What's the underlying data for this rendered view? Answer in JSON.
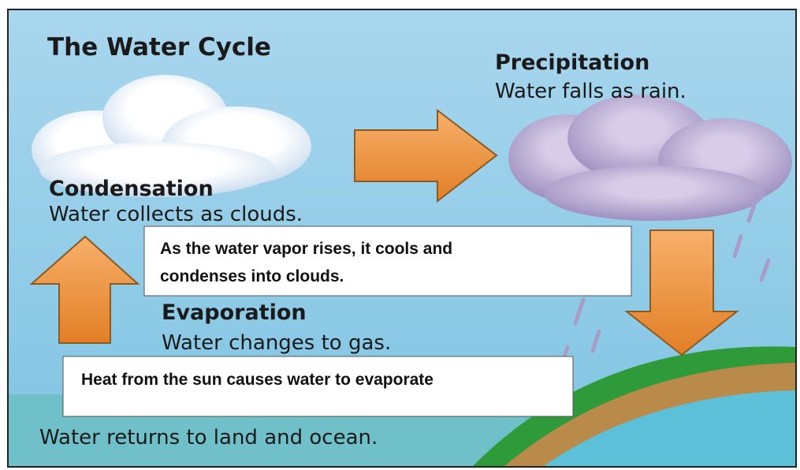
{
  "title": "The Water Cycle",
  "condensation": {
    "heading": "Condensation",
    "text": "Water collects as clouds."
  },
  "precipitation": {
    "heading": "Precipitation",
    "text": "Water falls as rain."
  },
  "evaporation": {
    "heading": "Evaporation",
    "text": "Water changes to gas."
  },
  "callouts": [
    {
      "lines": [
        "As the water vapor rises, it cools and",
        "condenses into clouds."
      ]
    },
    {
      "lines": [
        "Heat from the sun causes water to evaporate"
      ]
    }
  ],
  "footer": "Water returns to land and ocean."
}
